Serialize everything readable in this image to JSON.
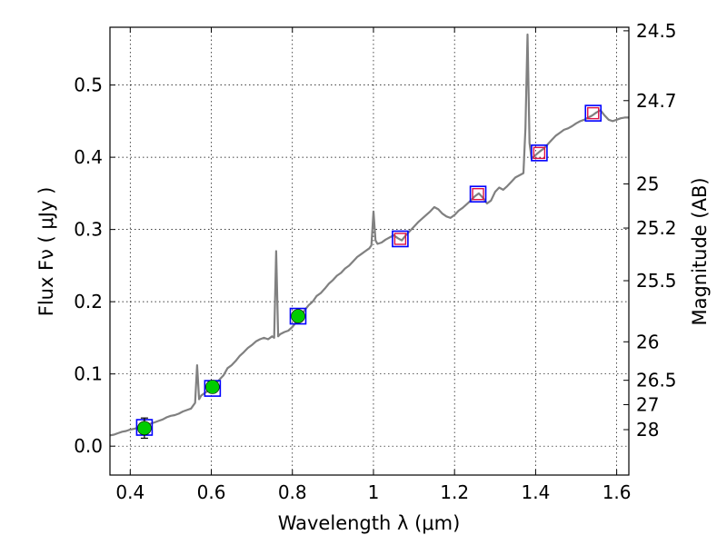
{
  "chart_data": {
    "type": "line",
    "title": "",
    "xlabel": "Wavelength  λ (μm)",
    "ylabel": "Flux  Fν  ( μJy )",
    "y2label": "Magnitude (AB)",
    "xlim": [
      0.35,
      1.63
    ],
    "ylim": [
      -0.04,
      0.58
    ],
    "grid": true,
    "x_ticks": [
      0.4,
      0.6,
      0.8,
      1.0,
      1.2,
      1.4,
      1.6
    ],
    "x_tick_labels": [
      "0.4",
      "0.6",
      "0.8",
      "1",
      "1.2",
      "1.4",
      "1.6"
    ],
    "y_ticks": [
      0.0,
      0.1,
      0.2,
      0.3,
      0.4,
      0.5
    ],
    "y_tick_labels": [
      "0.0",
      "0.1",
      "0.2",
      "0.3",
      "0.4",
      "0.5"
    ],
    "y2_ticks": [
      {
        "label": "24.5",
        "flux": 0.5751
      },
      {
        "label": "24.7",
        "flux": 0.4784
      },
      {
        "label": "25",
        "flux": 0.3631
      },
      {
        "label": "25.2",
        "flux": 0.302
      },
      {
        "label": "25.5",
        "flux": 0.2291
      },
      {
        "label": "26",
        "flux": 0.1445
      },
      {
        "label": "26.5",
        "flux": 0.0912
      },
      {
        "label": "27",
        "flux": 0.0575
      },
      {
        "label": "28",
        "flux": 0.0229
      }
    ],
    "series": [
      {
        "name": "model spectrum",
        "color": "#808080",
        "x": [
          0.35,
          0.36,
          0.37,
          0.38,
          0.39,
          0.4,
          0.41,
          0.42,
          0.43,
          0.44,
          0.45,
          0.46,
          0.47,
          0.48,
          0.49,
          0.5,
          0.51,
          0.52,
          0.53,
          0.54,
          0.55,
          0.56,
          0.565,
          0.57,
          0.575,
          0.58,
          0.59,
          0.6,
          0.61,
          0.62,
          0.63,
          0.64,
          0.65,
          0.66,
          0.67,
          0.68,
          0.69,
          0.7,
          0.71,
          0.72,
          0.73,
          0.74,
          0.75,
          0.755,
          0.76,
          0.765,
          0.77,
          0.78,
          0.79,
          0.8,
          0.81,
          0.82,
          0.83,
          0.84,
          0.85,
          0.86,
          0.87,
          0.88,
          0.89,
          0.9,
          0.91,
          0.92,
          0.93,
          0.94,
          0.95,
          0.96,
          0.97,
          0.98,
          0.99,
          0.995,
          1.0,
          1.005,
          1.01,
          1.02,
          1.03,
          1.04,
          1.05,
          1.06,
          1.07,
          1.08,
          1.09,
          1.1,
          1.11,
          1.12,
          1.13,
          1.14,
          1.15,
          1.16,
          1.17,
          1.18,
          1.19,
          1.2,
          1.21,
          1.22,
          1.23,
          1.24,
          1.25,
          1.26,
          1.27,
          1.28,
          1.29,
          1.3,
          1.31,
          1.32,
          1.33,
          1.34,
          1.35,
          1.36,
          1.37,
          1.375,
          1.38,
          1.385,
          1.39,
          1.4,
          1.41,
          1.42,
          1.43,
          1.44,
          1.45,
          1.46,
          1.47,
          1.48,
          1.49,
          1.5,
          1.51,
          1.52,
          1.53,
          1.54,
          1.55,
          1.56,
          1.57,
          1.58,
          1.59,
          1.6,
          1.61,
          1.62,
          1.63
        ],
        "y": [
          0.015,
          0.016,
          0.018,
          0.02,
          0.021,
          0.023,
          0.024,
          0.026,
          0.027,
          0.029,
          0.031,
          0.033,
          0.035,
          0.037,
          0.04,
          0.042,
          0.043,
          0.045,
          0.048,
          0.05,
          0.052,
          0.06,
          0.112,
          0.065,
          0.07,
          0.072,
          0.076,
          0.08,
          0.085,
          0.092,
          0.098,
          0.108,
          0.112,
          0.118,
          0.125,
          0.13,
          0.136,
          0.14,
          0.145,
          0.148,
          0.15,
          0.148,
          0.152,
          0.15,
          0.27,
          0.152,
          0.155,
          0.158,
          0.16,
          0.165,
          0.172,
          0.18,
          0.188,
          0.195,
          0.2,
          0.208,
          0.212,
          0.218,
          0.225,
          0.23,
          0.236,
          0.24,
          0.246,
          0.25,
          0.256,
          0.262,
          0.266,
          0.27,
          0.274,
          0.278,
          0.325,
          0.285,
          0.28,
          0.282,
          0.286,
          0.289,
          0.292,
          0.288,
          0.285,
          0.292,
          0.298,
          0.304,
          0.31,
          0.315,
          0.32,
          0.325,
          0.331,
          0.328,
          0.322,
          0.318,
          0.316,
          0.32,
          0.326,
          0.33,
          0.335,
          0.34,
          0.346,
          0.35,
          0.344,
          0.336,
          0.34,
          0.352,
          0.358,
          0.355,
          0.36,
          0.366,
          0.372,
          0.375,
          0.378,
          0.44,
          0.57,
          0.42,
          0.398,
          0.403,
          0.408,
          0.412,
          0.418,
          0.424,
          0.43,
          0.434,
          0.438,
          0.44,
          0.443,
          0.447,
          0.45,
          0.452,
          0.455,
          0.458,
          0.462,
          0.465,
          0.458,
          0.452,
          0.45,
          0.452,
          0.454,
          0.455,
          0.455
        ]
      },
      {
        "name": "photometry",
        "color": "#00cc00",
        "x": [
          0.435,
          0.603,
          0.814
        ],
        "y": [
          0.025,
          0.082,
          0.18
        ],
        "yerr": [
          0.014,
          0.007,
          0.006
        ]
      },
      {
        "name": "model photometry (blue boxes)",
        "color": "#0000ff",
        "x": [
          0.435,
          0.603,
          0.814,
          1.066,
          1.258,
          1.409,
          1.542
        ],
        "y": [
          0.026,
          0.08,
          0.18,
          0.287,
          0.349,
          0.406,
          0.461
        ]
      },
      {
        "name": "model photometry (red boxes)",
        "color": "#dd1144",
        "x": [
          1.066,
          1.258,
          1.409,
          1.542
        ],
        "y": [
          0.287,
          0.349,
          0.406,
          0.461
        ]
      }
    ]
  }
}
